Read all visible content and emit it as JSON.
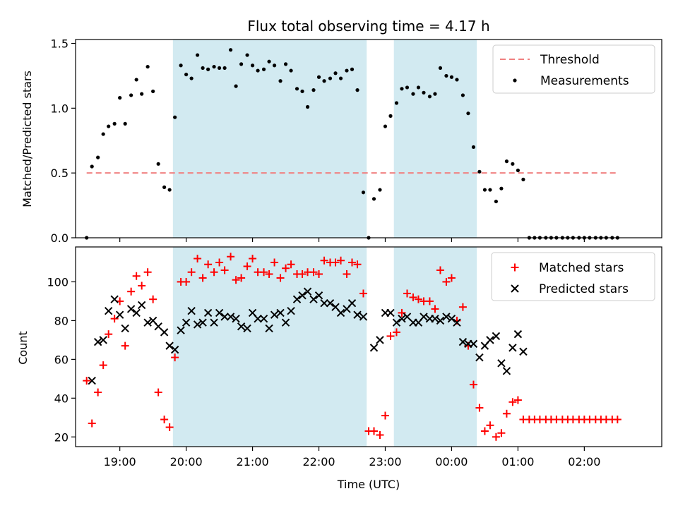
{
  "title": "Flux total observing time = 4.17 h",
  "colors": {
    "threshold": "#f08080",
    "measurements": "#000000",
    "matched": "#ff0000",
    "predicted": "#000000",
    "shading": "#add8e6"
  },
  "chart_data": [
    {
      "type": "scatter",
      "ylabel": "Matched/Predicted stars",
      "xlim": [
        18.333,
        27.167
      ],
      "ylim": [
        0,
        1.53
      ],
      "yticks": [
        0,
        0.5,
        1,
        1.5
      ],
      "ytick_labels": [
        "0.0",
        "0.5",
        "1.0",
        "1.5"
      ],
      "legend_position": "upper-right",
      "legend": [
        {
          "label": "Threshold",
          "kind": "dashed-line"
        },
        {
          "label": "Measurements",
          "kind": "dot"
        }
      ],
      "shaded_intervals": [
        [
          19.8,
          22.72
        ],
        [
          23.13,
          24.38
        ]
      ],
      "threshold": {
        "value": 0.5,
        "x_range": [
          18.5,
          26.5
        ]
      },
      "series": [
        {
          "name": "Measurements",
          "x": [
            18.5,
            18.58,
            18.67,
            18.75,
            18.83,
            18.92,
            19.0,
            19.08,
            19.17,
            19.25,
            19.33,
            19.42,
            19.5,
            19.58,
            19.67,
            19.75,
            19.83,
            19.92,
            20.0,
            20.08,
            20.17,
            20.25,
            20.33,
            20.42,
            20.5,
            20.58,
            20.67,
            20.75,
            20.83,
            20.92,
            21.0,
            21.08,
            21.17,
            21.25,
            21.33,
            21.42,
            21.5,
            21.58,
            21.67,
            21.75,
            21.83,
            21.92,
            22.0,
            22.08,
            22.17,
            22.25,
            22.33,
            22.42,
            22.5,
            22.58,
            22.67,
            22.75,
            22.83,
            22.92,
            23.0,
            23.08,
            23.17,
            23.25,
            23.33,
            23.42,
            23.5,
            23.58,
            23.67,
            23.75,
            23.83,
            23.92,
            24.0,
            24.08,
            24.17,
            24.25,
            24.33,
            24.42,
            24.5,
            24.58,
            24.67,
            24.75,
            24.83,
            24.92,
            25.0,
            25.08,
            25.17,
            25.25,
            25.33,
            25.42,
            25.5,
            25.58,
            25.67,
            25.75,
            25.83,
            25.92,
            26.0,
            26.08,
            26.17,
            26.25,
            26.33,
            26.42,
            26.5
          ],
          "y": [
            0.0,
            0.55,
            0.62,
            0.8,
            0.86,
            0.88,
            1.08,
            0.88,
            1.1,
            1.22,
            1.11,
            1.32,
            1.13,
            0.57,
            0.39,
            0.37,
            0.93,
            1.33,
            1.26,
            1.23,
            1.41,
            1.31,
            1.3,
            1.32,
            1.31,
            1.31,
            1.45,
            1.17,
            1.34,
            1.41,
            1.33,
            1.29,
            1.3,
            1.36,
            1.33,
            1.21,
            1.34,
            1.29,
            1.15,
            1.13,
            1.01,
            1.14,
            1.24,
            1.21,
            1.23,
            1.27,
            1.23,
            1.29,
            1.3,
            1.14,
            0.35,
            0.0,
            0.3,
            0.37,
            0.86,
            0.94,
            1.04,
            1.15,
            1.16,
            1.11,
            1.16,
            1.12,
            1.09,
            1.11,
            1.31,
            1.25,
            1.24,
            1.22,
            1.1,
            0.96,
            0.7,
            0.51,
            0.37,
            0.37,
            0.28,
            0.38,
            0.59,
            0.57,
            0.52,
            0.45,
            0.0,
            0.0,
            0.0,
            0.0,
            0.0,
            0.0,
            0.0,
            0.0,
            0.0,
            0.0,
            0.0,
            0.0,
            0.0,
            0.0,
            0.0,
            0.0,
            0.0
          ]
        }
      ]
    },
    {
      "type": "scatter",
      "ylabel": "Count",
      "xlabel": "Time (UTC)",
      "xlim": [
        18.333,
        27.167
      ],
      "ylim": [
        15,
        118
      ],
      "xticks": [
        19,
        20,
        21,
        22,
        23,
        24,
        25,
        26
      ],
      "xtick_labels": [
        "19:00",
        "20:00",
        "21:00",
        "22:00",
        "23:00",
        "00:00",
        "01:00",
        "02:00"
      ],
      "yticks": [
        20,
        40,
        60,
        80,
        100
      ],
      "ytick_labels": [
        "20",
        "40",
        "60",
        "80",
        "100"
      ],
      "legend_position": "upper-right",
      "legend": [
        {
          "label": "Matched stars",
          "kind": "plus"
        },
        {
          "label": "Predicted stars",
          "kind": "cross"
        }
      ],
      "shaded_intervals": [
        [
          19.8,
          22.72
        ],
        [
          23.13,
          24.38
        ]
      ],
      "series": [
        {
          "name": "Matched stars",
          "x": [
            18.5,
            18.58,
            18.67,
            18.75,
            18.83,
            18.92,
            19.0,
            19.08,
            19.17,
            19.25,
            19.33,
            19.42,
            19.5,
            19.58,
            19.67,
            19.75,
            19.83,
            19.92,
            20.0,
            20.08,
            20.17,
            20.25,
            20.33,
            20.42,
            20.5,
            20.58,
            20.67,
            20.75,
            20.83,
            20.92,
            21.0,
            21.08,
            21.17,
            21.25,
            21.33,
            21.42,
            21.5,
            21.58,
            21.67,
            21.75,
            21.83,
            21.92,
            22.0,
            22.08,
            22.17,
            22.25,
            22.33,
            22.42,
            22.5,
            22.58,
            22.67,
            22.75,
            22.83,
            22.92,
            23.0,
            23.08,
            23.17,
            23.25,
            23.33,
            23.42,
            23.5,
            23.58,
            23.67,
            23.75,
            23.83,
            23.92,
            24.0,
            24.08,
            24.17,
            24.25,
            24.33,
            24.42,
            24.5,
            24.58,
            24.67,
            24.75,
            24.83,
            24.92,
            25.0,
            25.08,
            25.17,
            25.25,
            25.33,
            25.42,
            25.5,
            25.58,
            25.67,
            25.75,
            25.83,
            25.92,
            26.0,
            26.08,
            26.17,
            26.25,
            26.33,
            26.42,
            26.5
          ],
          "y": [
            49,
            27,
            43,
            57,
            73,
            81,
            90,
            67,
            95,
            103,
            98,
            105,
            91,
            43,
            29,
            25,
            61,
            100,
            100,
            105,
            112,
            102,
            109,
            105,
            110,
            106,
            113,
            101,
            102,
            108,
            112,
            105,
            105,
            104,
            110,
            102,
            107,
            109,
            104,
            104,
            105,
            105,
            104,
            111,
            110,
            110,
            111,
            104,
            110,
            109,
            94,
            23,
            23,
            21,
            31,
            72,
            74,
            84,
            94,
            92,
            91,
            90,
            90,
            86,
            106,
            100,
            102,
            80,
            87,
            67,
            47,
            35,
            23,
            26,
            20,
            22,
            32,
            38,
            39,
            29,
            29,
            29,
            29,
            29,
            29,
            29,
            29,
            29,
            29,
            29,
            29,
            29,
            29,
            29,
            29,
            29,
            29
          ]
        },
        {
          "name": "Predicted stars",
          "x": [
            18.58,
            18.67,
            18.75,
            18.83,
            18.92,
            19.0,
            19.08,
            19.17,
            19.25,
            19.33,
            19.42,
            19.5,
            19.58,
            19.67,
            19.75,
            19.83,
            19.92,
            20.0,
            20.08,
            20.17,
            20.25,
            20.33,
            20.42,
            20.5,
            20.58,
            20.67,
            20.75,
            20.83,
            20.92,
            21.0,
            21.08,
            21.17,
            21.25,
            21.33,
            21.42,
            21.5,
            21.58,
            21.67,
            21.75,
            21.83,
            21.92,
            22.0,
            22.08,
            22.17,
            22.25,
            22.33,
            22.42,
            22.5,
            22.58,
            22.67,
            22.83,
            22.92,
            23.0,
            23.08,
            23.17,
            23.25,
            23.33,
            23.42,
            23.5,
            23.58,
            23.67,
            23.75,
            23.83,
            23.92,
            24.0,
            24.08,
            24.17,
            24.25,
            24.33,
            24.42,
            24.5,
            24.58,
            24.67,
            24.75,
            24.83,
            24.92,
            25.0,
            25.08
          ],
          "y": [
            49,
            69,
            70,
            85,
            91,
            83,
            76,
            86,
            84,
            88,
            79,
            80,
            77,
            74,
            67,
            65,
            75,
            79,
            85,
            78,
            79,
            84,
            79,
            84,
            82,
            82,
            81,
            77,
            76,
            84,
            81,
            81,
            76,
            83,
            84,
            79,
            85,
            91,
            93,
            95,
            91,
            93,
            89,
            89,
            87,
            84,
            86,
            89,
            83,
            82,
            66,
            70,
            84,
            84,
            79,
            81,
            82,
            79,
            79,
            82,
            81,
            81,
            80,
            82,
            81,
            79,
            69,
            68,
            68,
            61,
            67,
            70,
            72,
            58,
            54,
            66,
            73,
            64
          ]
        }
      ]
    }
  ]
}
